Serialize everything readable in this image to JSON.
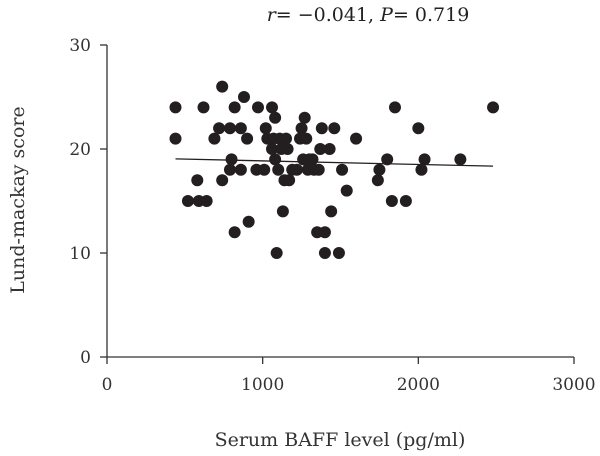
{
  "chart_data": {
    "type": "scatter",
    "title": "",
    "annotation": {
      "r_symbol": "r",
      "r_value": "= −0.041, ",
      "p_symbol": "P",
      "p_value": "= 0.719"
    },
    "xlabel": "Serum BAFF level (pg/ml)",
    "ylabel": "Lund-mackay score",
    "xlim": [
      0,
      3000
    ],
    "ylim": [
      0,
      30
    ],
    "xticks": [
      0,
      1000,
      2000,
      3000
    ],
    "yticks": [
      0,
      10,
      20,
      30
    ],
    "xtick_labels": [
      "0",
      "1000",
      "2000",
      "3000"
    ],
    "ytick_labels": [
      "0",
      "10",
      "20",
      "30"
    ],
    "grid": false,
    "point_color": "#231f20",
    "line_color": "#231f20",
    "points": [
      {
        "x": 440,
        "y": 24
      },
      {
        "x": 440,
        "y": 21
      },
      {
        "x": 520,
        "y": 15
      },
      {
        "x": 580,
        "y": 17
      },
      {
        "x": 590,
        "y": 15
      },
      {
        "x": 640,
        "y": 15
      },
      {
        "x": 620,
        "y": 24
      },
      {
        "x": 690,
        "y": 21
      },
      {
        "x": 720,
        "y": 22
      },
      {
        "x": 740,
        "y": 26
      },
      {
        "x": 740,
        "y": 17
      },
      {
        "x": 790,
        "y": 22
      },
      {
        "x": 790,
        "y": 18
      },
      {
        "x": 800,
        "y": 19
      },
      {
        "x": 820,
        "y": 24
      },
      {
        "x": 820,
        "y": 12
      },
      {
        "x": 860,
        "y": 22
      },
      {
        "x": 860,
        "y": 18
      },
      {
        "x": 880,
        "y": 25
      },
      {
        "x": 900,
        "y": 21
      },
      {
        "x": 910,
        "y": 13
      },
      {
        "x": 960,
        "y": 18
      },
      {
        "x": 970,
        "y": 24
      },
      {
        "x": 1010,
        "y": 18
      },
      {
        "x": 1020,
        "y": 22
      },
      {
        "x": 1030,
        "y": 21
      },
      {
        "x": 1060,
        "y": 24
      },
      {
        "x": 1060,
        "y": 20
      },
      {
        "x": 1070,
        "y": 21
      },
      {
        "x": 1080,
        "y": 23
      },
      {
        "x": 1080,
        "y": 19
      },
      {
        "x": 1090,
        "y": 10
      },
      {
        "x": 1100,
        "y": 18
      },
      {
        "x": 1110,
        "y": 21
      },
      {
        "x": 1120,
        "y": 20
      },
      {
        "x": 1130,
        "y": 14
      },
      {
        "x": 1140,
        "y": 17
      },
      {
        "x": 1150,
        "y": 21
      },
      {
        "x": 1160,
        "y": 20
      },
      {
        "x": 1170,
        "y": 17
      },
      {
        "x": 1190,
        "y": 18
      },
      {
        "x": 1220,
        "y": 18
      },
      {
        "x": 1240,
        "y": 21
      },
      {
        "x": 1250,
        "y": 22
      },
      {
        "x": 1260,
        "y": 19
      },
      {
        "x": 1270,
        "y": 23
      },
      {
        "x": 1280,
        "y": 21
      },
      {
        "x": 1290,
        "y": 18
      },
      {
        "x": 1300,
        "y": 19
      },
      {
        "x": 1320,
        "y": 19
      },
      {
        "x": 1330,
        "y": 18
      },
      {
        "x": 1350,
        "y": 12
      },
      {
        "x": 1360,
        "y": 18
      },
      {
        "x": 1370,
        "y": 20
      },
      {
        "x": 1380,
        "y": 22
      },
      {
        "x": 1400,
        "y": 12
      },
      {
        "x": 1400,
        "y": 10
      },
      {
        "x": 1430,
        "y": 20
      },
      {
        "x": 1440,
        "y": 14
      },
      {
        "x": 1460,
        "y": 22
      },
      {
        "x": 1490,
        "y": 10
      },
      {
        "x": 1510,
        "y": 18
      },
      {
        "x": 1540,
        "y": 16
      },
      {
        "x": 1600,
        "y": 21
      },
      {
        "x": 1740,
        "y": 17
      },
      {
        "x": 1750,
        "y": 18
      },
      {
        "x": 1800,
        "y": 19
      },
      {
        "x": 1830,
        "y": 15
      },
      {
        "x": 1850,
        "y": 24
      },
      {
        "x": 1920,
        "y": 15
      },
      {
        "x": 2000,
        "y": 22
      },
      {
        "x": 2020,
        "y": 18
      },
      {
        "x": 2040,
        "y": 19
      },
      {
        "x": 2270,
        "y": 19
      },
      {
        "x": 2480,
        "y": 24
      }
    ],
    "trendline": {
      "x": [
        440,
        2480
      ],
      "y": [
        19.05,
        18.35
      ]
    }
  }
}
